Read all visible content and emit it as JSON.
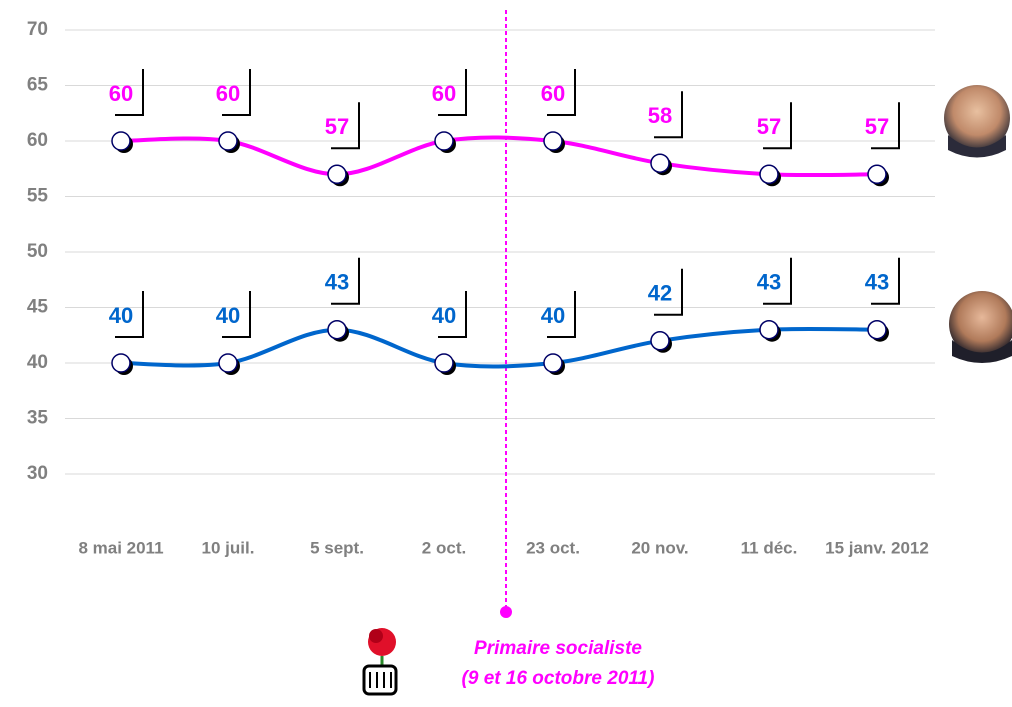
{
  "chart_data": {
    "type": "line",
    "categories": [
      "8 mai 2011",
      "10 juil.",
      "5 sept.",
      "2 oct.",
      "23 oct.",
      "20 nov.",
      "11 déc.",
      "15 janv. 2012"
    ],
    "series": [
      {
        "color": "#ff00ff",
        "values": [
          60,
          60,
          57,
          60,
          60,
          58,
          57,
          57
        ]
      },
      {
        "color": "#0066cc",
        "values": [
          40,
          40,
          43,
          40,
          40,
          42,
          43,
          43
        ]
      }
    ],
    "ylim": [
      30,
      70
    ],
    "yticks": [
      30,
      35,
      40,
      45,
      50,
      55,
      60,
      65,
      70
    ],
    "grid": true,
    "annotation": [
      "Primaire socialiste",
      "(9 et 16 octobre 2011)"
    ]
  }
}
